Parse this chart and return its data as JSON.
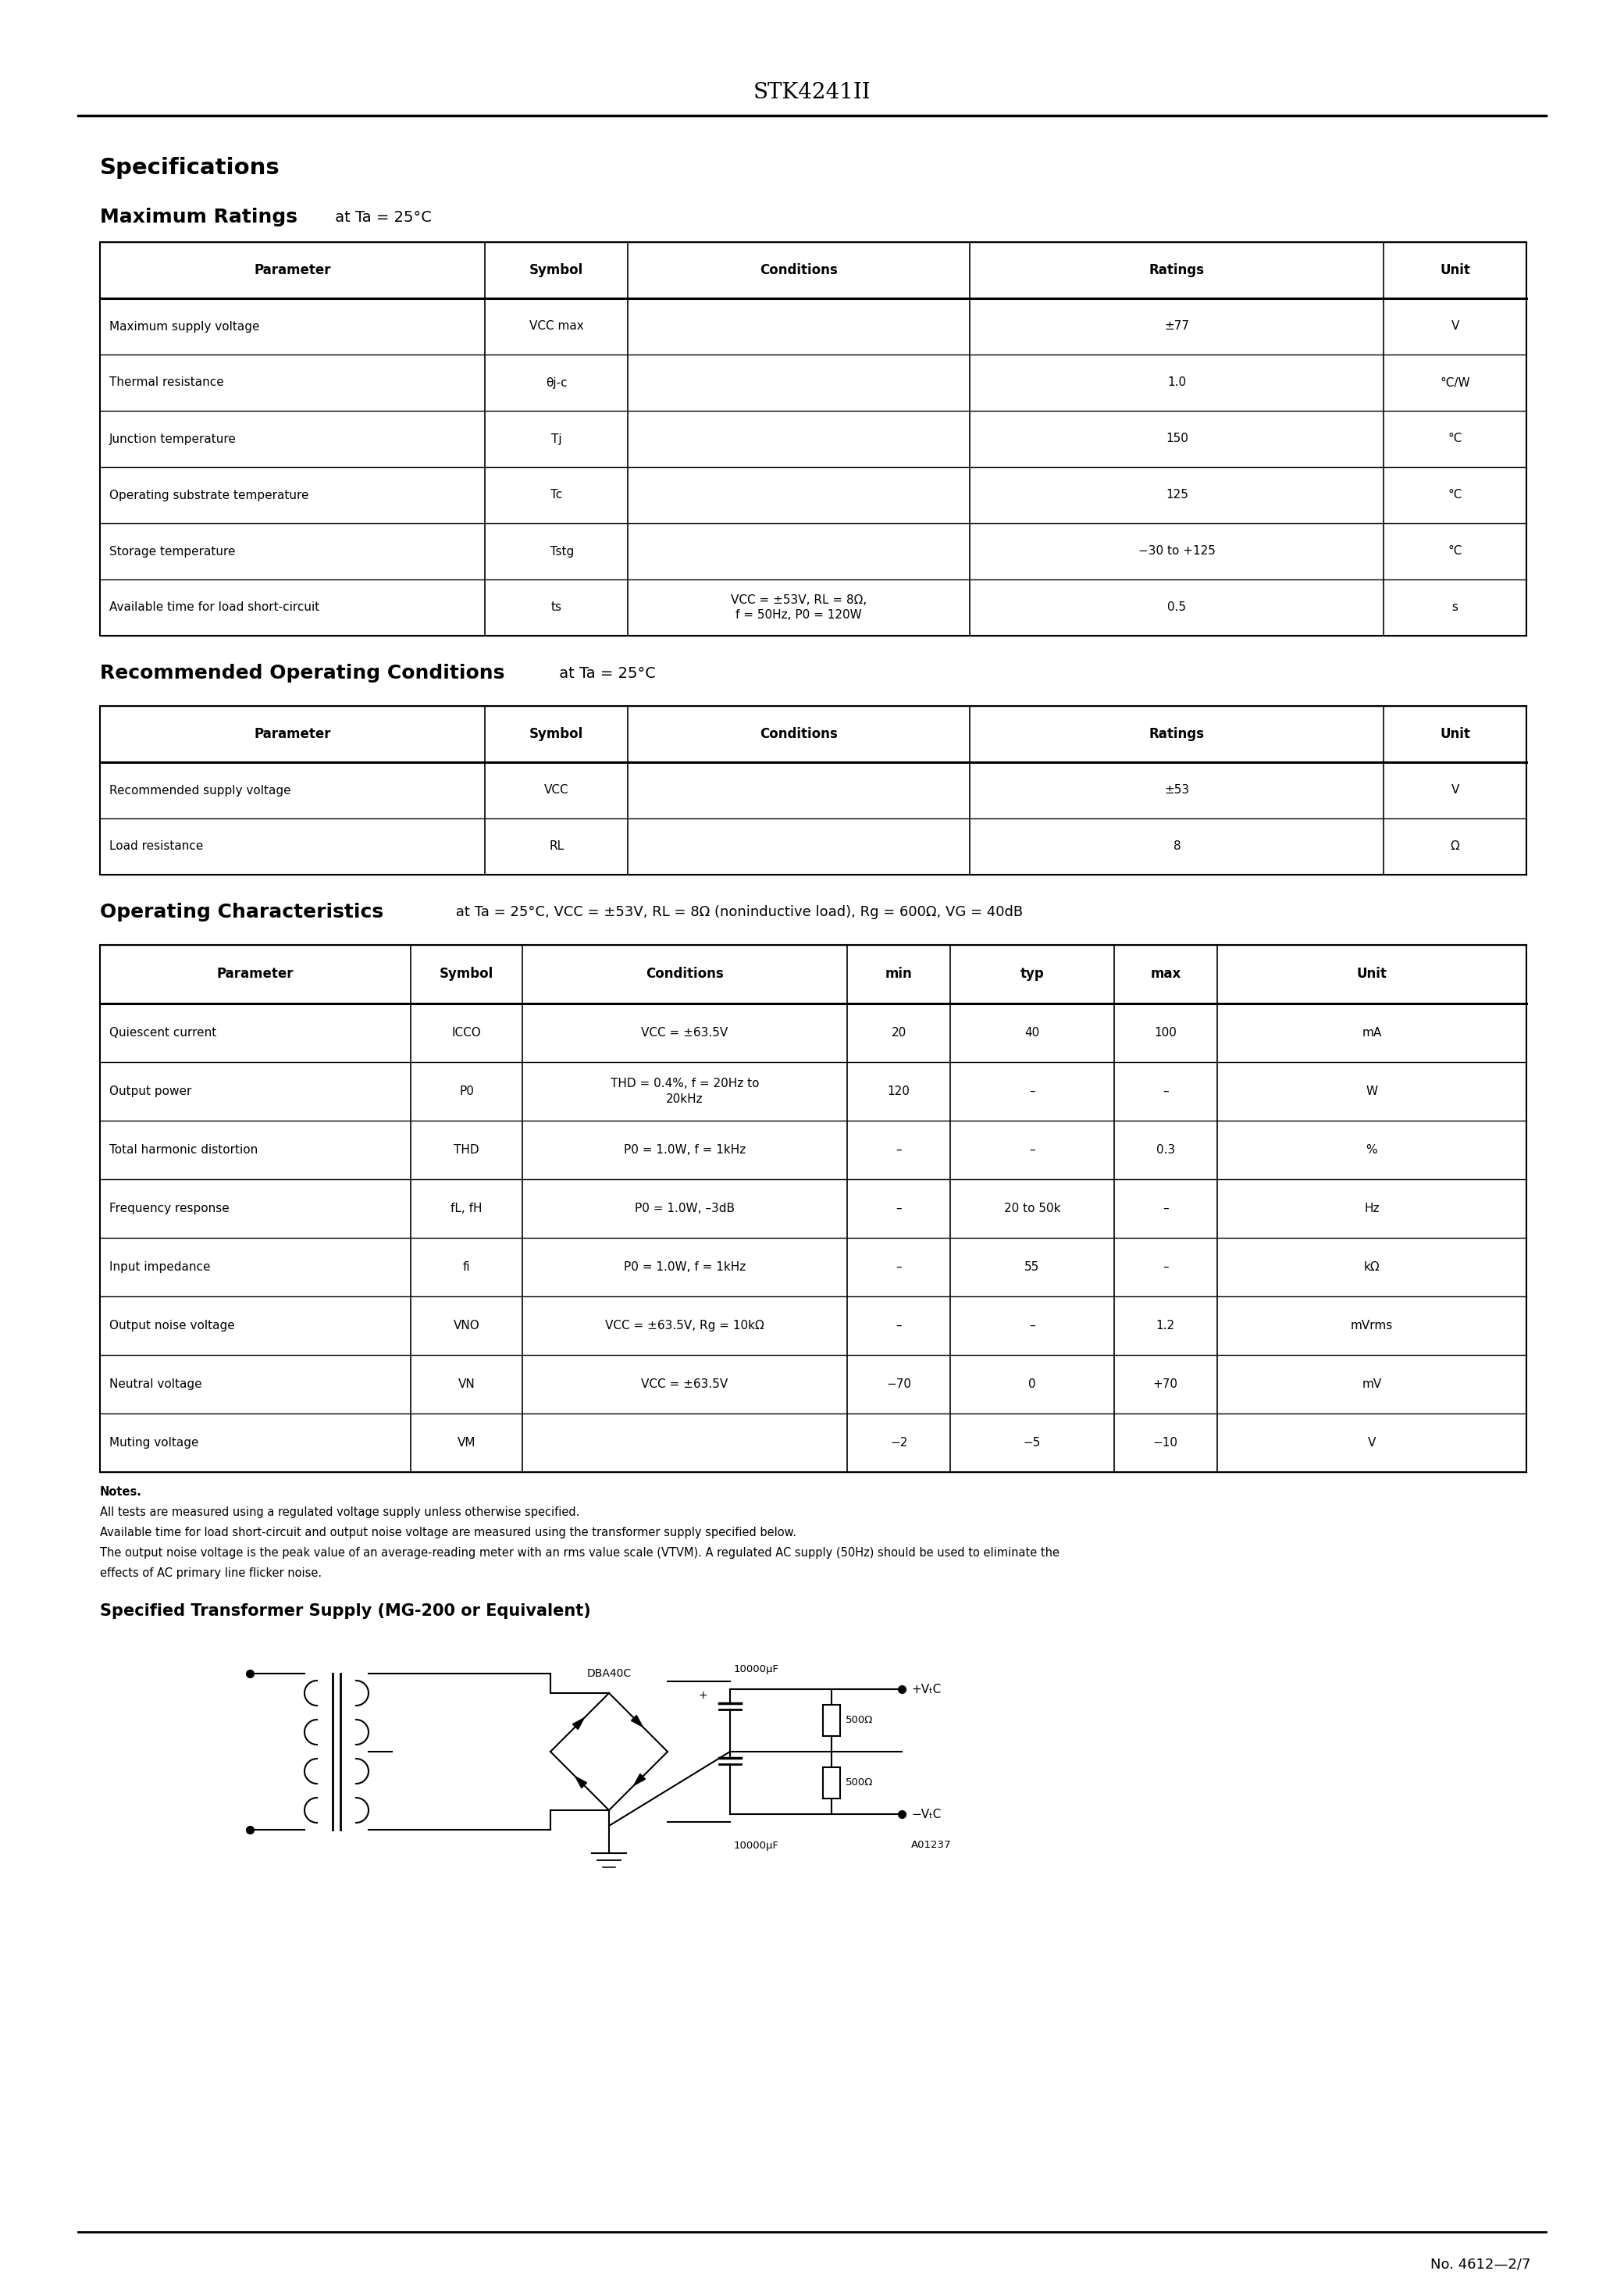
{
  "page_title": "STK4241II",
  "bg": "#ffffff",
  "fg": "#000000",
  "footer": "No. 4612—2/7",
  "transformer_title": "Specified Transformer Supply (MG-200 or Equivalent)",
  "mr_headers": [
    "Parameter",
    "Symbol",
    "Conditions",
    "Ratings",
    "Unit"
  ],
  "mr_rows": [
    [
      "Maximum supply voltage",
      "VCC max",
      "",
      "±77",
      "V"
    ],
    [
      "Thermal resistance",
      "θj-c",
      "",
      "1.0",
      "°C/W"
    ],
    [
      "Junction temperature",
      "Tj",
      "",
      "150",
      "°C"
    ],
    [
      "Operating substrate temperature",
      "Tc",
      "",
      "125",
      "°C"
    ],
    [
      "Storage temperature",
      "   Tstg",
      "",
      "−30 to +125",
      "°C"
    ],
    [
      "Available time for load short-circuit",
      "ts",
      "VCC = ±53V, RL = 8Ω,\nf = 50Hz, P0 = 120W",
      "0.5",
      "s"
    ]
  ],
  "rec_rows": [
    [
      "Recommended supply voltage",
      "VCC",
      "",
      "±53",
      "V"
    ],
    [
      "Load resistance",
      "RL",
      "",
      "8",
      "Ω"
    ]
  ],
  "oc_headers": [
    "Parameter",
    "Symbol",
    "Conditions",
    "min",
    "typ",
    "max",
    "Unit"
  ],
  "oc_rows": [
    [
      "Quiescent current",
      "ICCO",
      "VCC = ±63.5V",
      "20",
      "40",
      "100",
      "mA"
    ],
    [
      "Output power",
      "P0",
      "THD = 0.4%, f = 20Hz to\n20kHz",
      "120",
      "–",
      "–",
      "W"
    ],
    [
      "Total harmonic distortion",
      "THD",
      "P0 = 1.0W, f = 1kHz",
      "–",
      "–",
      "0.3",
      "%"
    ],
    [
      "Frequency response",
      "fL, fH",
      "P0 = 1.0W, –3dB",
      "–",
      "20 to 50k",
      "–",
      "Hz"
    ],
    [
      "Input impedance",
      "fi",
      "P0 = 1.0W, f = 1kHz",
      "–",
      "55",
      "–",
      "kΩ"
    ],
    [
      "Output noise voltage",
      "VNO",
      "VCC = ±63.5V, Rg = 10kΩ",
      "–",
      "–",
      "1.2",
      "mVrms"
    ],
    [
      "Neutral voltage",
      "VN",
      "VCC = ±63.5V",
      "−70",
      "0",
      "+70",
      "mV"
    ],
    [
      "Muting voltage",
      "VM",
      "",
      "−2",
      "−5",
      "−10",
      "V"
    ]
  ],
  "notes": [
    [
      "Notes.",
      true
    ],
    [
      "All tests are measured using a regulated voltage supply unless otherwise specified.",
      false
    ],
    [
      "Available time for load short-circuit and output noise voltage are measured using the transformer supply specified below.",
      false
    ],
    [
      "The output noise voltage is the peak value of an average-reading meter with an rms value scale (VTVM). A regulated AC supply (50Hz) should be used to eliminate the",
      false
    ],
    [
      "effects of AC primary line flicker noise.",
      false
    ]
  ]
}
